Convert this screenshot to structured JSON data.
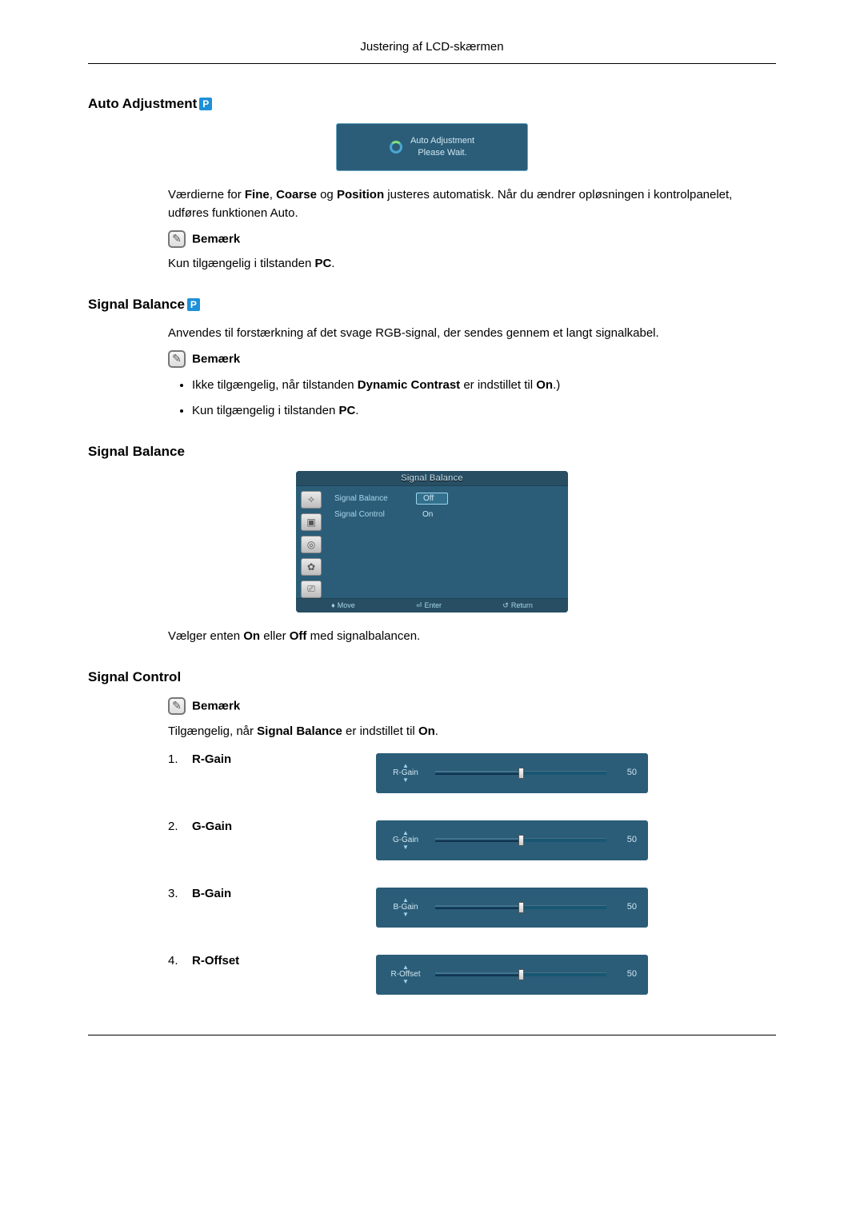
{
  "page": {
    "header": "Justering af LCD-skærmen"
  },
  "sections": {
    "auto_adjustment": {
      "title": "Auto Adjustment",
      "panel": {
        "line1": "Auto Adjustment",
        "line2": "Please Wait.",
        "bg_color": "#2b5d78",
        "text_color": "#cfe6f2"
      },
      "paragraph_parts": {
        "p1a": "Værdierne for ",
        "p1b": "Fine",
        "p1c": ", ",
        "p1d": "Coarse",
        "p1e": " og ",
        "p1f": "Position",
        "p1g": " justeres automatisk. Når du ændrer opløsningen i kontrolpanelet, udføres funktionen Auto."
      },
      "note_label": "Bemærk",
      "note_parts": {
        "a": "Kun tilgængelig i tilstanden ",
        "b": "PC",
        "c": "."
      }
    },
    "signal_balance_intro": {
      "title": "Signal Balance",
      "paragraph": "Anvendes til forstærkning af det svage RGB-signal, der sendes gennem et langt signalkabel.",
      "note_label": "Bemærk",
      "bullet1": {
        "a": "Ikke tilgængelig, når tilstanden ",
        "b": "Dynamic Contrast",
        "c": " er indstillet til ",
        "d": "On",
        "e": ".)"
      },
      "bullet2": {
        "a": "Kun tilgængelig i tilstanden ",
        "b": "PC",
        "c": "."
      }
    },
    "signal_balance_osd": {
      "title": "Signal Balance",
      "osd": {
        "title": "Signal Balance",
        "rows": [
          {
            "label": "Signal Balance",
            "value": "Off",
            "selected": true
          },
          {
            "label": "Signal Control",
            "value": "On",
            "selected": false
          }
        ],
        "footer": {
          "move": "Move",
          "enter": "Enter",
          "return": "Return"
        },
        "side_icons": [
          "✧",
          "▣",
          "◎",
          "✿",
          "⎚"
        ]
      },
      "under_parts": {
        "a": "Vælger enten ",
        "b": "On",
        "c": " eller ",
        "d": "Off",
        "e": " med signalbalancen."
      }
    },
    "signal_control": {
      "title": "Signal Control",
      "note_label": "Bemærk",
      "note_parts": {
        "a": "Tilgængelig, når ",
        "b": "Signal Balance",
        "c": " er indstillet til ",
        "d": "On",
        "e": "."
      },
      "items": [
        {
          "num": "1.",
          "name": "R-Gain",
          "label": "R-Gain",
          "value": 50
        },
        {
          "num": "2.",
          "name": "G-Gain",
          "label": "G-Gain",
          "value": 50
        },
        {
          "num": "3.",
          "name": "B-Gain",
          "label": "B-Gain",
          "value": 50
        },
        {
          "num": "4.",
          "name": "R-Offset",
          "label": "R-Offset",
          "value": 50
        }
      ],
      "slider_style": {
        "bg_color": "#2b5d78",
        "track_color": "#185772",
        "text_color": "#cfe6f2",
        "max": 100
      }
    }
  },
  "icons": {
    "p_badge": "P",
    "note": "✎"
  }
}
